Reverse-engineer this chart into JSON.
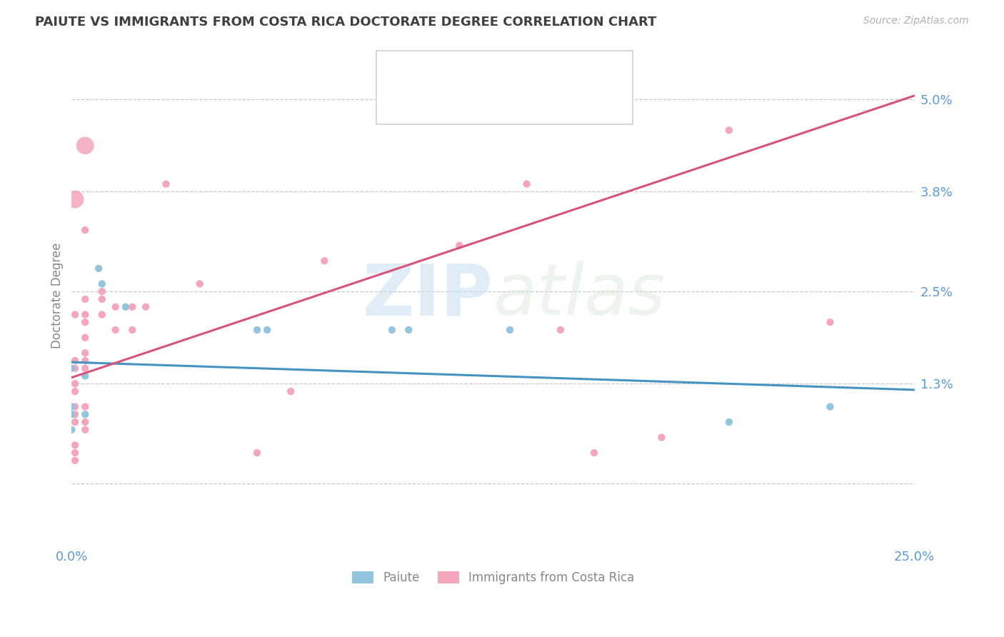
{
  "title": "PAIUTE VS IMMIGRANTS FROM COSTA RICA DOCTORATE DEGREE CORRELATION CHART",
  "source_text": "Source: ZipAtlas.com",
  "ylabel": "Doctorate Degree",
  "xlim": [
    0.0,
    0.25
  ],
  "ylim": [
    -0.008,
    0.057
  ],
  "yticks": [
    0.0,
    0.013,
    0.025,
    0.038,
    0.05
  ],
  "ytick_labels": [
    "",
    "1.3%",
    "2.5%",
    "3.8%",
    "5.0%"
  ],
  "xticks": [
    0.0,
    0.25
  ],
  "xtick_labels": [
    "0.0%",
    "25.0%"
  ],
  "watermark_zip": "ZIP",
  "watermark_atlas": "atlas",
  "paiute_color": "#92c5de",
  "cr_color": "#f4a6bc",
  "line_paiute_color": "#4393c3",
  "line_cr_color": "#d6537a",
  "legend_text_color": "#3a6bbf",
  "paiute_points": [
    [
      0.0,
      0.015
    ],
    [
      0.0,
      0.01
    ],
    [
      0.0,
      0.009
    ],
    [
      0.0,
      0.007
    ],
    [
      0.004,
      0.014
    ],
    [
      0.004,
      0.009
    ],
    [
      0.008,
      0.028
    ],
    [
      0.009,
      0.026
    ],
    [
      0.016,
      0.023
    ],
    [
      0.055,
      0.02
    ],
    [
      0.058,
      0.02
    ],
    [
      0.095,
      0.02
    ],
    [
      0.1,
      0.02
    ],
    [
      0.13,
      0.02
    ],
    [
      0.195,
      0.008
    ],
    [
      0.225,
      0.01
    ]
  ],
  "cr_points": [
    [
      0.001,
      0.022
    ],
    [
      0.001,
      0.016
    ],
    [
      0.001,
      0.015
    ],
    [
      0.001,
      0.013
    ],
    [
      0.001,
      0.012
    ],
    [
      0.001,
      0.01
    ],
    [
      0.001,
      0.009
    ],
    [
      0.001,
      0.008
    ],
    [
      0.001,
      0.005
    ],
    [
      0.001,
      0.004
    ],
    [
      0.001,
      0.003
    ],
    [
      0.004,
      0.033
    ],
    [
      0.004,
      0.024
    ],
    [
      0.004,
      0.022
    ],
    [
      0.004,
      0.021
    ],
    [
      0.004,
      0.019
    ],
    [
      0.004,
      0.017
    ],
    [
      0.004,
      0.016
    ],
    [
      0.004,
      0.015
    ],
    [
      0.004,
      0.01
    ],
    [
      0.004,
      0.008
    ],
    [
      0.004,
      0.007
    ],
    [
      0.009,
      0.025
    ],
    [
      0.009,
      0.024
    ],
    [
      0.009,
      0.022
    ],
    [
      0.013,
      0.023
    ],
    [
      0.013,
      0.02
    ],
    [
      0.018,
      0.023
    ],
    [
      0.018,
      0.02
    ],
    [
      0.022,
      0.023
    ],
    [
      0.028,
      0.039
    ],
    [
      0.038,
      0.026
    ],
    [
      0.055,
      0.004
    ],
    [
      0.065,
      0.012
    ],
    [
      0.075,
      0.029
    ],
    [
      0.115,
      0.031
    ],
    [
      0.135,
      0.039
    ],
    [
      0.145,
      0.02
    ],
    [
      0.155,
      0.004
    ],
    [
      0.175,
      0.006
    ],
    [
      0.195,
      0.046
    ],
    [
      0.225,
      0.021
    ]
  ],
  "cr_large_points": [
    [
      0.001,
      0.037
    ],
    [
      0.004,
      0.044
    ]
  ],
  "paiute_line": [
    0.0,
    0.25,
    0.0158,
    0.0122
  ],
  "cr_line": [
    0.0,
    0.25,
    0.0138,
    0.0505
  ],
  "background_color": "#ffffff",
  "grid_color": "#c8c8c8",
  "title_color": "#404040",
  "axis_tick_color": "#5b9bd5",
  "ylabel_color": "#888888"
}
